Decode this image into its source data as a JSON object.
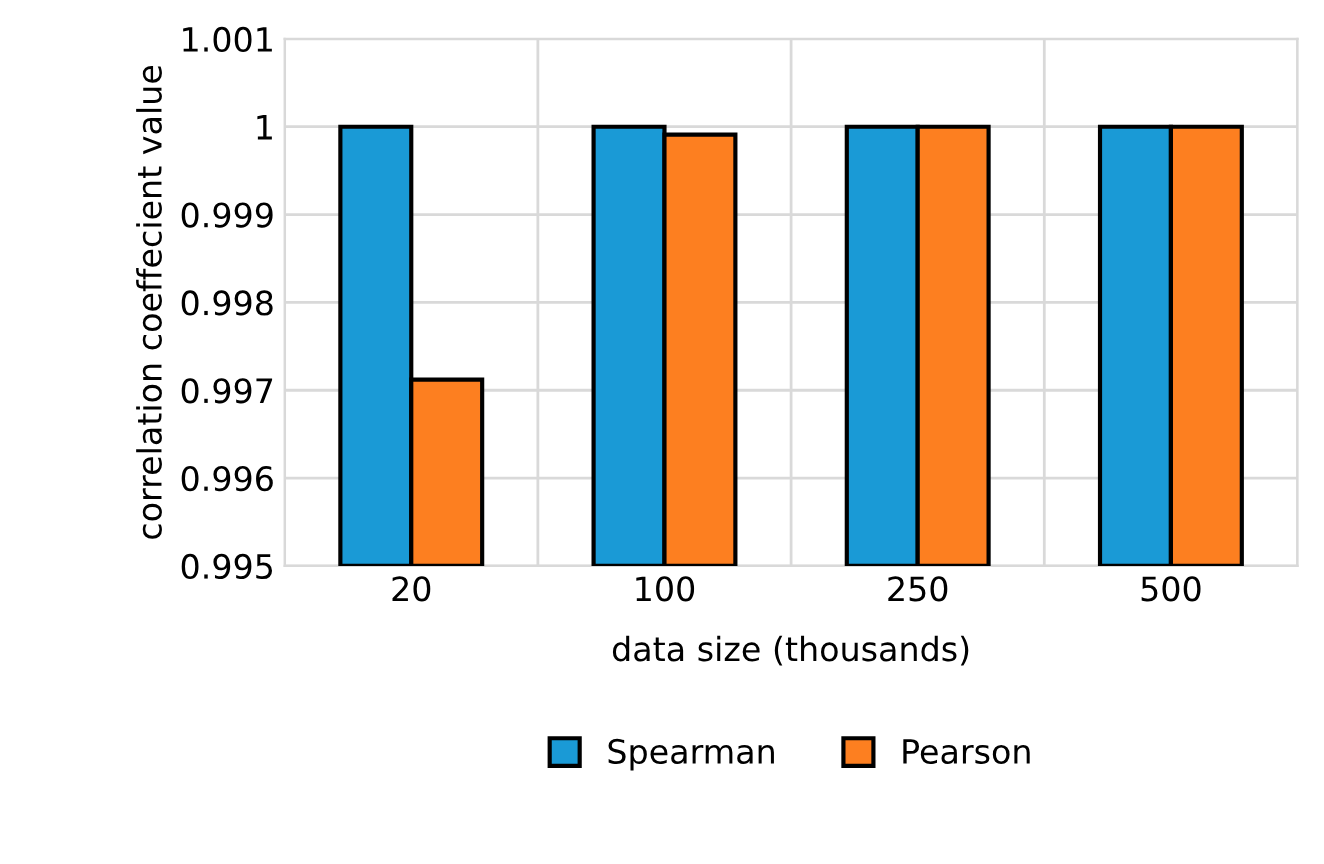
{
  "chart_data": {
    "type": "bar",
    "xlabel": "data size (thousands)",
    "ylabel": "correlation coeffecient value",
    "categories": [
      "20",
      "100",
      "250",
      "500"
    ],
    "series": [
      {
        "name": "Spearman",
        "color": "#1a9ad6",
        "values": [
          1,
          1,
          1,
          1
        ]
      },
      {
        "name": "Pearson",
        "color": "#fd7f20",
        "values": [
          0.99712,
          0.99991,
          1,
          1
        ]
      }
    ],
    "ylim": [
      0.995,
      1.001
    ],
    "yticks": [
      0.995,
      0.996,
      0.997,
      0.998,
      0.999,
      1,
      1.001
    ],
    "grid": true,
    "legend": "bottom"
  }
}
